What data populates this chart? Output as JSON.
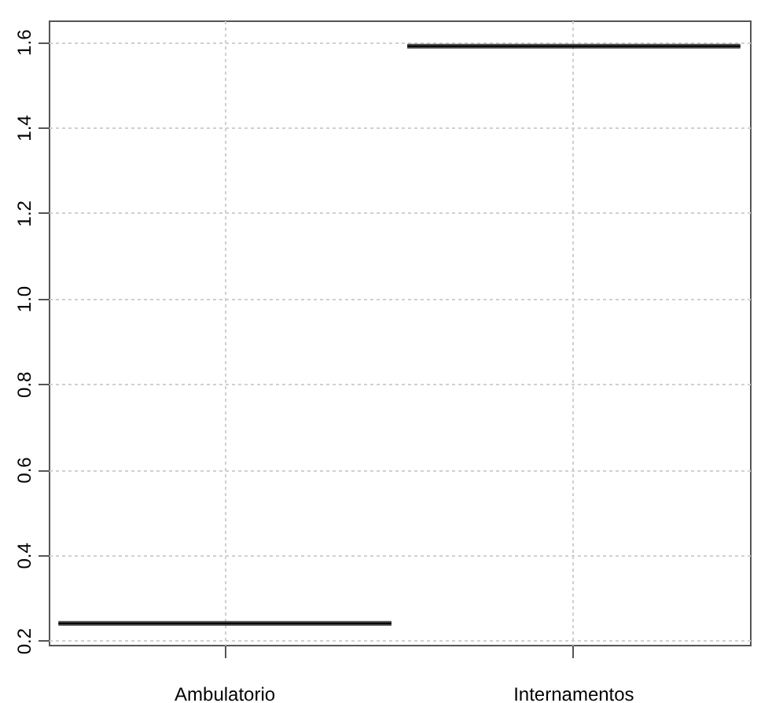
{
  "chart_data": {
    "type": "box",
    "categories": [
      "Ambulatorio",
      "Internamentos"
    ],
    "boxes": [
      {
        "low": 0.24,
        "q1": 0.24,
        "median": 0.24,
        "q3": 0.24,
        "high": 0.24
      },
      {
        "low": 1.59,
        "q1": 1.59,
        "median": 1.59,
        "q3": 1.59,
        "high": 1.59
      }
    ],
    "ylim": [
      0.19,
      1.65
    ],
    "yticks": [
      0.2,
      0.4,
      0.6,
      0.8,
      {
        "value": 1,
        "label": "1.0"
      },
      1.2,
      1.4,
      1.6
    ],
    "grid": true
  }
}
